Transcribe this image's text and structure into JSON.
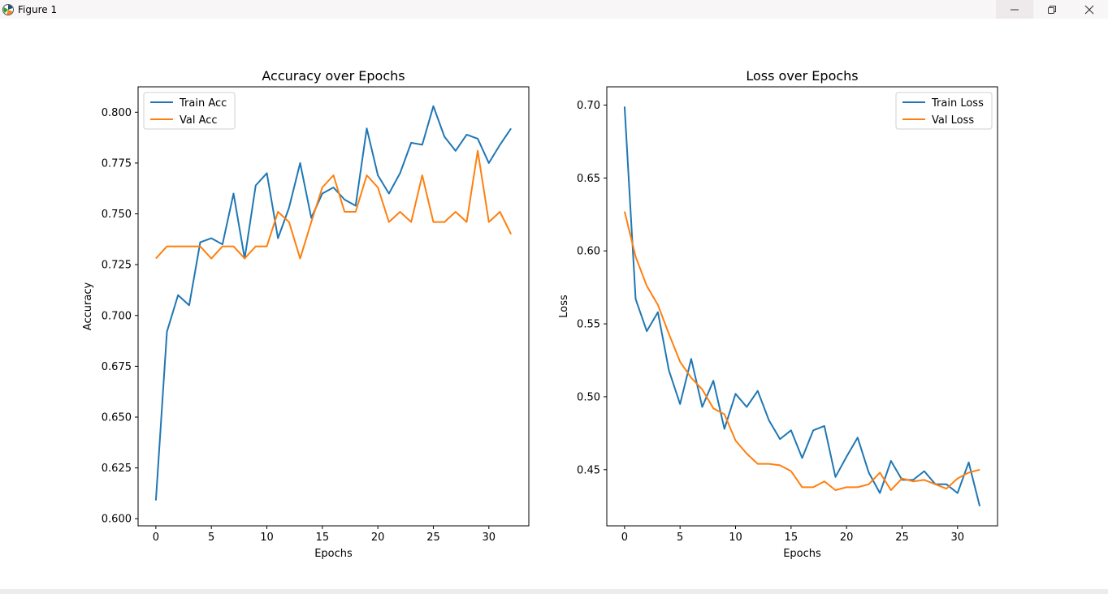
{
  "window": {
    "title": "Figure 1",
    "icon": "matplotlib-icon",
    "controls": [
      "minimize-icon",
      "restore-icon",
      "close-icon"
    ]
  },
  "colors": {
    "series1": "#1f77b4",
    "series2": "#ff7f0e",
    "axis": "#000000",
    "titlebar": "#f9f6f7"
  },
  "chart_data": [
    {
      "type": "line",
      "title": "Accuracy over Epochs",
      "xlabel": "Epochs",
      "ylabel": "Accuracy",
      "xlim": [
        -1.6,
        33.6
      ],
      "ylim": [
        0.5965,
        0.8125
      ],
      "xticks": [
        0,
        5,
        10,
        15,
        20,
        25,
        30
      ],
      "xtick_labels": [
        "0",
        "5",
        "10",
        "15",
        "20",
        "25",
        "30"
      ],
      "yticks": [
        0.6,
        0.625,
        0.65,
        0.675,
        0.7,
        0.725,
        0.75,
        0.775,
        0.8
      ],
      "ytick_labels": [
        "0.600",
        "0.625",
        "0.650",
        "0.675",
        "0.700",
        "0.725",
        "0.750",
        "0.775",
        "0.800"
      ],
      "legend_loc": "upper-left",
      "grid": false,
      "x": [
        0,
        1,
        2,
        3,
        4,
        5,
        6,
        7,
        8,
        9,
        10,
        11,
        12,
        13,
        14,
        15,
        16,
        17,
        18,
        19,
        20,
        21,
        22,
        23,
        24,
        25,
        26,
        27,
        28,
        29,
        30,
        31,
        32
      ],
      "series": [
        {
          "name": "Train Acc",
          "color": "#1f77b4",
          "values": [
            0.609,
            0.692,
            0.71,
            0.705,
            0.736,
            0.738,
            0.735,
            0.76,
            0.728,
            0.764,
            0.77,
            0.738,
            0.753,
            0.775,
            0.748,
            0.76,
            0.763,
            0.757,
            0.754,
            0.792,
            0.769,
            0.76,
            0.77,
            0.785,
            0.784,
            0.803,
            0.788,
            0.781,
            0.789,
            0.787,
            0.775,
            0.784,
            0.792
          ]
        },
        {
          "name": "Val Acc",
          "color": "#ff7f0e",
          "values": [
            0.728,
            0.734,
            0.734,
            0.734,
            0.734,
            0.728,
            0.734,
            0.734,
            0.728,
            0.734,
            0.734,
            0.751,
            0.746,
            0.728,
            0.746,
            0.763,
            0.769,
            0.751,
            0.751,
            0.769,
            0.763,
            0.746,
            0.751,
            0.746,
            0.769,
            0.746,
            0.746,
            0.751,
            0.746,
            0.781,
            0.746,
            0.751,
            0.74
          ]
        }
      ]
    },
    {
      "type": "line",
      "title": "Loss over Epochs",
      "xlabel": "Epochs",
      "ylabel": "Loss",
      "xlim": [
        -1.6,
        33.6
      ],
      "ylim": [
        0.4115,
        0.7125
      ],
      "xticks": [
        0,
        5,
        10,
        15,
        20,
        25,
        30
      ],
      "xtick_labels": [
        "0",
        "5",
        "10",
        "15",
        "20",
        "25",
        "30"
      ],
      "yticks": [
        0.45,
        0.5,
        0.55,
        0.6,
        0.65,
        0.7
      ],
      "ytick_labels": [
        "0.45",
        "0.50",
        "0.55",
        "0.60",
        "0.65",
        "0.70"
      ],
      "legend_loc": "upper-right",
      "grid": false,
      "x": [
        0,
        1,
        2,
        3,
        4,
        5,
        6,
        7,
        8,
        9,
        10,
        11,
        12,
        13,
        14,
        15,
        16,
        17,
        18,
        19,
        20,
        21,
        22,
        23,
        24,
        25,
        26,
        27,
        28,
        29,
        30,
        31,
        32
      ],
      "series": [
        {
          "name": "Train Loss",
          "color": "#1f77b4",
          "values": [
            0.699,
            0.567,
            0.545,
            0.558,
            0.518,
            0.495,
            0.526,
            0.493,
            0.511,
            0.478,
            0.502,
            0.493,
            0.504,
            0.484,
            0.471,
            0.477,
            0.458,
            0.477,
            0.48,
            0.445,
            0.459,
            0.472,
            0.448,
            0.434,
            0.456,
            0.443,
            0.443,
            0.449,
            0.44,
            0.44,
            0.434,
            0.455,
            0.425
          ]
        },
        {
          "name": "Val Loss",
          "color": "#ff7f0e",
          "values": [
            0.627,
            0.596,
            0.576,
            0.563,
            0.543,
            0.524,
            0.513,
            0.505,
            0.492,
            0.488,
            0.47,
            0.461,
            0.454,
            0.454,
            0.453,
            0.449,
            0.438,
            0.438,
            0.442,
            0.436,
            0.438,
            0.438,
            0.44,
            0.448,
            0.436,
            0.444,
            0.442,
            0.443,
            0.44,
            0.437,
            0.444,
            0.448,
            0.45
          ]
        }
      ]
    }
  ]
}
